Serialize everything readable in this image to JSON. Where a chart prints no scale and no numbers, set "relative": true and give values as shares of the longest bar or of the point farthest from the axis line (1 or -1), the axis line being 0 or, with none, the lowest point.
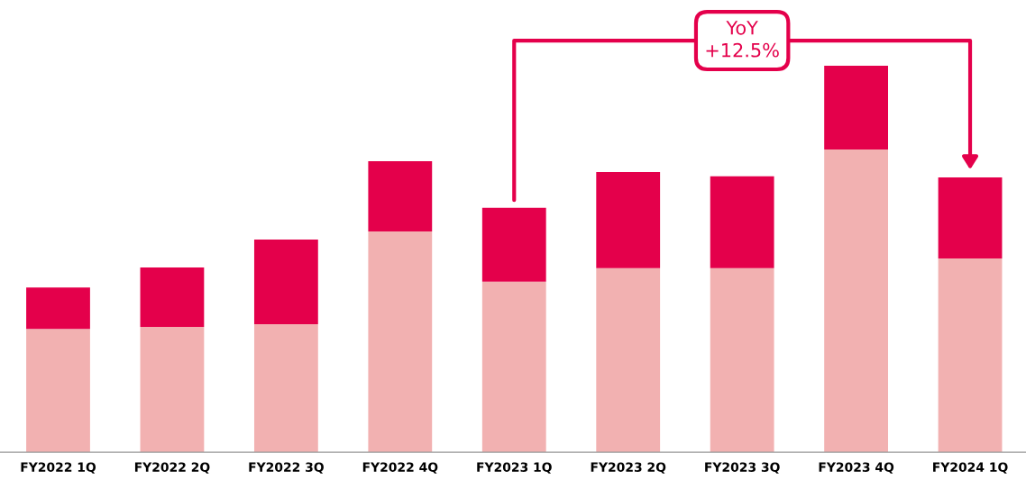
{
  "chart_data": {
    "type": "bar",
    "stacked": true,
    "relative": true,
    "categories": [
      "FY2022 1Q",
      "FY2022 2Q",
      "FY2022 3Q",
      "FY2022 4Q",
      "FY2023 1Q",
      "FY2023 2Q",
      "FY2023 3Q",
      "FY2023 4Q",
      "FY2024 1Q"
    ],
    "series": [
      {
        "color": "#f2b1b1",
        "values": [
          0.319,
          0.324,
          0.331,
          0.571,
          0.441,
          0.476,
          0.476,
          0.783,
          0.501
        ]
      },
      {
        "color": "#e4004b",
        "values": [
          0.107,
          0.154,
          0.219,
          0.182,
          0.191,
          0.249,
          0.238,
          0.217,
          0.21
        ]
      }
    ],
    "annotations": [
      "YoY\n+12.5%"
    ],
    "grid": false,
    "legend": false
  }
}
